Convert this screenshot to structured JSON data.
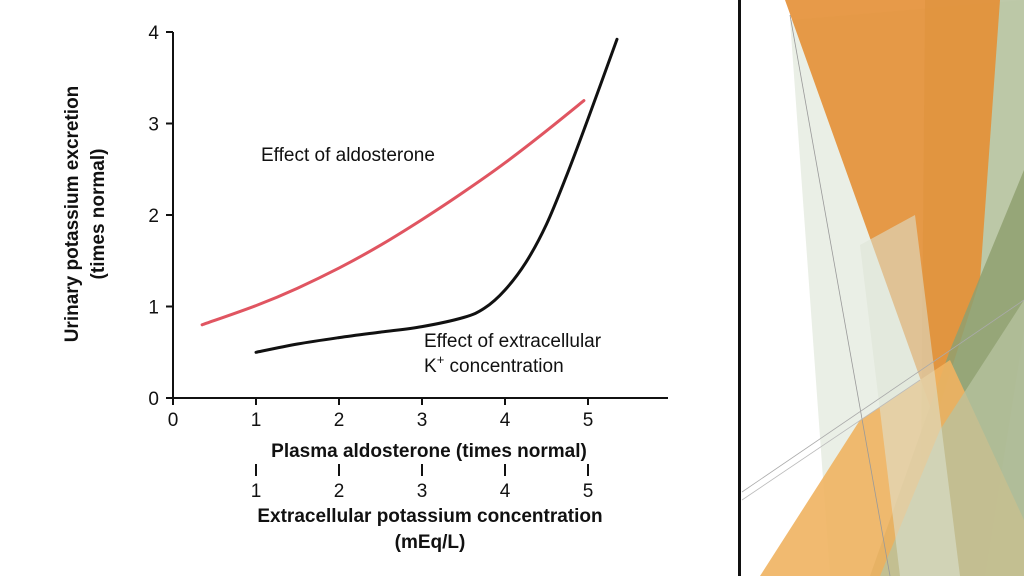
{
  "chart_data": {
    "type": "line",
    "ylabel_line1": "Urinary potassium excretion",
    "ylabel_line2": "(times normal)",
    "xlabel": "Plasma aldosterone (times normal)",
    "xlabel2_line1": "Extracellular potassium concentration",
    "xlabel2_line2": "(mEq/L)",
    "xlim": [
      0,
      6
    ],
    "ylim": [
      0,
      4
    ],
    "x_ticks": [
      "0",
      "1",
      "2",
      "3",
      "4",
      "5"
    ],
    "x2_ticks": [
      "1",
      "2",
      "3",
      "4",
      "5"
    ],
    "y_ticks": [
      "0",
      "1",
      "2",
      "3",
      "4"
    ],
    "grid": false,
    "series": [
      {
        "name": "Effect of aldosterone",
        "color": "#e05561",
        "x": [
          0.35,
          1.0,
          1.5,
          2.0,
          2.5,
          3.0,
          3.5,
          4.0,
          4.5,
          4.95
        ],
        "y": [
          0.8,
          1.01,
          1.2,
          1.42,
          1.67,
          1.95,
          2.25,
          2.57,
          2.92,
          3.25
        ]
      },
      {
        "name": "Effect of extracellular K+ concentration",
        "color": "#111111",
        "x": [
          1.0,
          1.5,
          2.0,
          2.5,
          3.0,
          3.5,
          3.75,
          4.0,
          4.25,
          4.5,
          4.75,
          5.0,
          5.35
        ],
        "y": [
          0.5,
          0.59,
          0.66,
          0.72,
          0.78,
          0.88,
          0.98,
          1.18,
          1.48,
          1.9,
          2.45,
          3.05,
          3.92
        ]
      }
    ],
    "annotations": {
      "aldosterone": "Effect of aldosterone",
      "potassium_line1": "Effect of extracellular",
      "potassium_line2_prefix": "K",
      "potassium_line2_sup": "+",
      "potassium_line2_suffix": " concentration"
    }
  },
  "decor_colors": {
    "orange": "#e48f35",
    "light_orange": "#f0b260",
    "sage": "#8fa070",
    "light_sage": "#b7c3a0",
    "pale": "#dce4d6"
  }
}
